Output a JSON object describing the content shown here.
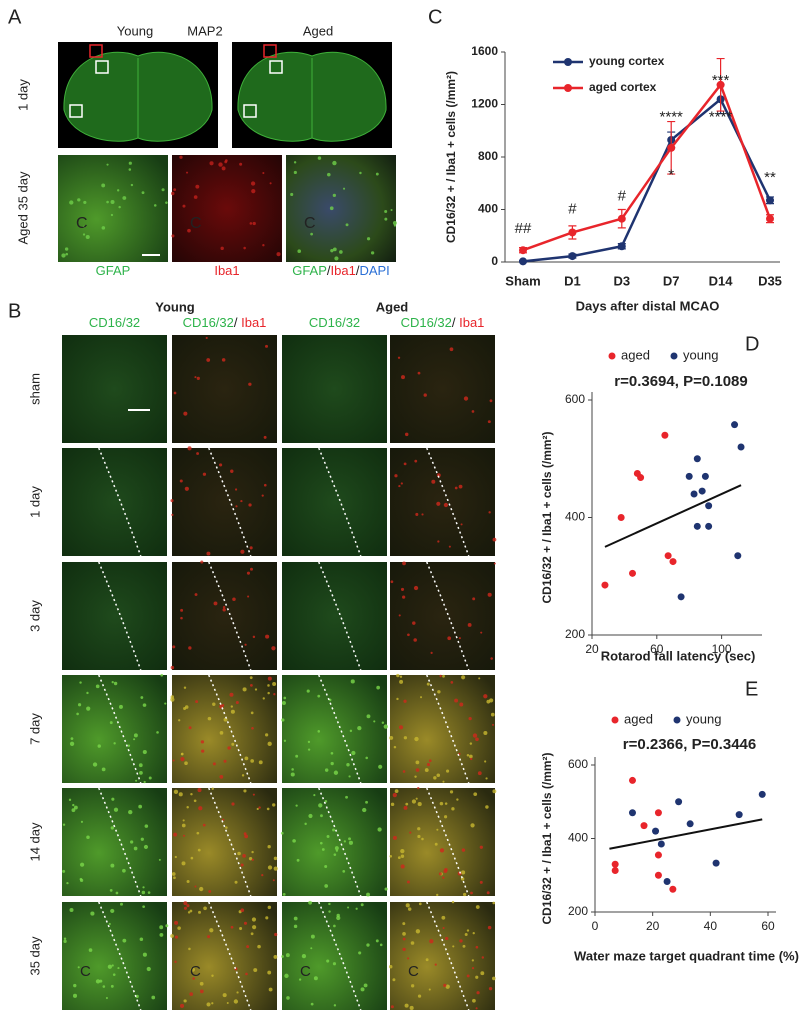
{
  "panel_a": {
    "label": "A",
    "columns": [
      "Young",
      "Aged"
    ],
    "stain": "MAP2",
    "stain_color": "#2db34a",
    "row_labels": [
      "1 day",
      "Aged 35 day"
    ],
    "core_marks": [
      "C",
      "C",
      "C"
    ],
    "channel_labels": [
      [
        {
          "text": "GFAP",
          "color": "#2db34a"
        }
      ],
      [
        {
          "text": "Iba1",
          "color": "#e8252b"
        }
      ],
      [
        {
          "text": "GFAP",
          "color": "#2db34a"
        },
        {
          "text": "/",
          "color": "#222"
        },
        {
          "text": "Iba1",
          "color": "#e8252b"
        },
        {
          "text": "/",
          "color": "#222"
        },
        {
          "text": "DAPI",
          "color": "#2a6fd6"
        }
      ]
    ]
  },
  "panel_b": {
    "label": "B",
    "groups": [
      "Young",
      "Aged"
    ],
    "column_labels": [
      [
        {
          "text": "CD16/32",
          "color": "#2db34a"
        }
      ],
      [
        {
          "text": "CD16/32",
          "color": "#2db34a"
        },
        {
          "text": "/ ",
          "color": "#222"
        },
        {
          "text": "Iba1",
          "color": "#e8252b"
        }
      ],
      [
        {
          "text": "CD16/32",
          "color": "#2db34a"
        }
      ],
      [
        {
          "text": "CD16/32",
          "color": "#2db34a"
        },
        {
          "text": "/ ",
          "color": "#222"
        },
        {
          "text": "Iba1",
          "color": "#e8252b"
        }
      ]
    ],
    "row_labels": [
      "sham",
      "1 day",
      "3 day",
      "7 day",
      "14 day",
      "35 day"
    ],
    "core_marks": [
      "C",
      "C",
      "C",
      "C"
    ]
  },
  "chart_data": [
    {
      "type": "line",
      "panel_label": "C",
      "x_label": "Days after distal MCAO",
      "y_label": "CD16/32 + / Iba1 + cells (/mm²)",
      "categories": [
        "Sham",
        "D1",
        "D3",
        "D7",
        "D14",
        "D35"
      ],
      "series": [
        {
          "name": "young cortex",
          "color": "#1f3470",
          "values": [
            5,
            45,
            120,
            930,
            1240,
            470
          ],
          "errors": [
            5,
            15,
            20,
            60,
            110,
            25
          ]
        },
        {
          "name": "aged cortex",
          "color": "#e8252b",
          "values": [
            90,
            225,
            330,
            870,
            1350,
            330
          ],
          "errors": [
            20,
            50,
            70,
            200,
            200,
            30
          ]
        }
      ],
      "ylim": [
        0,
        1600
      ],
      "yticks": [
        0,
        400,
        800,
        1200,
        1600
      ],
      "annotations": [
        {
          "text": "##",
          "x": "Sham",
          "y": 250,
          "color": "#333"
        },
        {
          "text": "#",
          "x": "D1",
          "y": 400,
          "color": "#333"
        },
        {
          "text": "#",
          "x": "D3",
          "y": 500,
          "color": "#333"
        },
        {
          "text": "****",
          "x": "D7",
          "y": 1100,
          "color": "#2e8bc0"
        },
        {
          "text": "*",
          "x": "D7",
          "y": 660,
          "color": "#e8252b"
        },
        {
          "text": "****",
          "x": "D14",
          "y": 1100,
          "color": "#2e8bc0"
        },
        {
          "text": "***",
          "x": "D14",
          "y": 1380,
          "color": "#e8252b"
        },
        {
          "text": "**",
          "x": "D35",
          "y": 640,
          "color": "#2e8bc0"
        }
      ]
    },
    {
      "type": "scatter",
      "panel_label": "D",
      "title": "r=0.3694, P=0.1089",
      "x_label": "Rotarod fall latency (sec)",
      "y_label": "CD16/32 + / Iba1 + cells (/mm²)",
      "series": [
        {
          "name": "aged",
          "color": "#e8252b",
          "x": [
            28,
            38,
            45,
            48,
            50,
            65,
            67,
            70
          ],
          "values": [
            285,
            400,
            305,
            475,
            468,
            540,
            335,
            325
          ]
        },
        {
          "name": "young",
          "color": "#1f3470",
          "x": [
            75,
            80,
            83,
            85,
            85,
            88,
            90,
            92,
            92,
            108,
            110,
            112
          ],
          "values": [
            265,
            470,
            440,
            500,
            385,
            445,
            470,
            385,
            420,
            558,
            335,
            520
          ]
        }
      ],
      "trendline": {
        "x": [
          28,
          112
        ],
        "y": [
          350,
          455
        ]
      },
      "xlim": [
        20,
        120
      ],
      "xticks": [
        20,
        60,
        100
      ],
      "ylim": [
        200,
        600
      ],
      "yticks": [
        200,
        400,
        600
      ]
    },
    {
      "type": "scatter",
      "panel_label": "E",
      "title": "r=0.2366, P=0.3446",
      "x_label": "Water maze target quadrant time (%)",
      "y_label": "CD16/32 + / Iba1 + cells (/mm²)",
      "series": [
        {
          "name": "aged",
          "color": "#e8252b",
          "x": [
            7,
            7,
            13,
            17,
            22,
            22,
            22,
            27
          ],
          "values": [
            330,
            313,
            558,
            435,
            470,
            355,
            300,
            262
          ]
        },
        {
          "name": "young",
          "color": "#1f3470",
          "x": [
            13,
            21,
            23,
            25,
            29,
            33,
            42,
            50,
            58
          ],
          "values": [
            470,
            420,
            385,
            283,
            500,
            440,
            333,
            465,
            520
          ]
        }
      ],
      "trendline": {
        "x": [
          5,
          58
        ],
        "y": [
          372,
          452
        ]
      },
      "xlim": [
        0,
        60
      ],
      "xticks": [
        0,
        20,
        40,
        60
      ],
      "ylim": [
        200,
        600
      ],
      "yticks": [
        200,
        400,
        600
      ]
    }
  ]
}
